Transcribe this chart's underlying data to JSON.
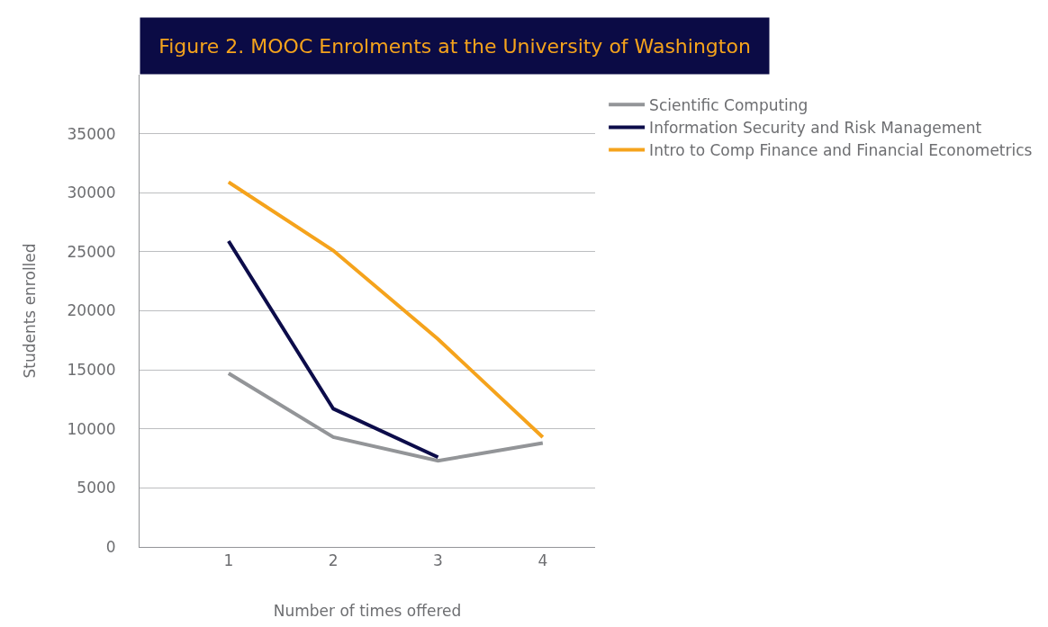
{
  "chart_data": {
    "type": "line",
    "title": "Figure 2. MOOC Enrolments at the University of Washington",
    "xlabel": "Number of times offered",
    "ylabel": "Students enrolled",
    "x": [
      1,
      2,
      3,
      4
    ],
    "xlim": [
      0.15,
      4.5
    ],
    "xticks": [
      1,
      2,
      3,
      4
    ],
    "ylim": [
      0,
      40000
    ],
    "yticks": [
      0,
      5000,
      10000,
      15000,
      20000,
      25000,
      30000,
      35000
    ],
    "grid": "y",
    "legend": "right",
    "marker": "none",
    "line_style": "solid",
    "series": [
      {
        "name": "Scientific Computing",
        "color": "#939598",
        "values": [
          14700,
          9300,
          7300,
          8800
        ]
      },
      {
        "name": "Information Security and Risk Management",
        "color": "#0c0c4a",
        "values": [
          25900,
          11700,
          7600,
          null
        ]
      },
      {
        "name": "Intro to Comp Finance and Financial Econometrics",
        "color": "#f5a31c",
        "values": [
          30900,
          25100,
          17600,
          9300
        ]
      }
    ]
  }
}
